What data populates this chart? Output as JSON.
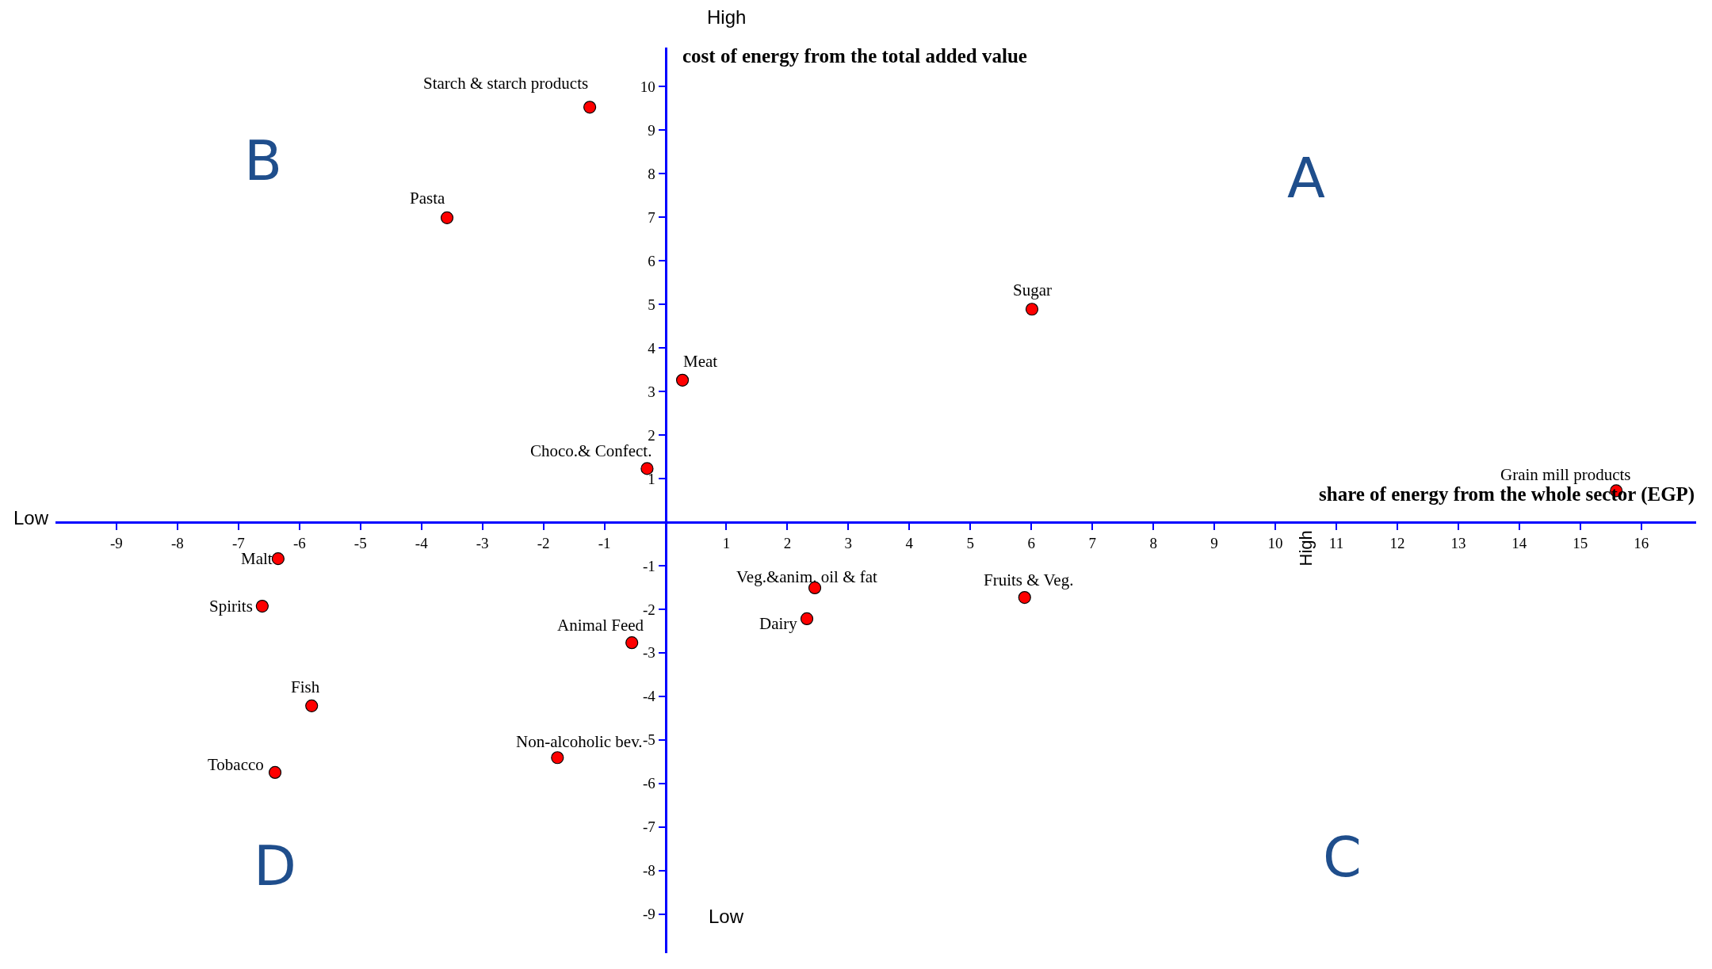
{
  "chart_data": {
    "type": "scatter",
    "xlabel": "share of energy from the whole sector (EGP)",
    "ylabel": "cost of energy from the total added value",
    "x": [
      -1.24,
      -3.58,
      6.01,
      0.28,
      -0.3,
      15.59,
      -6.35,
      -6.61,
      -5.8,
      -6.4,
      -0.55,
      -1.77,
      2.45,
      2.32,
      5.89
    ],
    "series": [
      {
        "color": "#ff0000",
        "values": [
          9.53,
          6.99,
          4.89,
          3.26,
          1.23,
          0.72,
          -0.84,
          -1.93,
          -4.22,
          -5.75,
          -2.77,
          -5.41,
          -1.51,
          -2.22,
          -1.73
        ]
      }
    ],
    "marker": "circle",
    "grid": false,
    "legend": false,
    "xlim": [
      -10,
      16.9
    ],
    "ylim": [
      -9.9,
      10.9
    ],
    "xticks": [
      -9,
      -8,
      -7,
      -6,
      -5,
      -4,
      -3,
      -2,
      -1,
      1,
      2,
      3,
      4,
      5,
      6,
      7,
      8,
      9,
      10,
      11,
      12,
      13,
      14,
      15,
      16
    ],
    "yticks": [
      -9,
      -8,
      -7,
      -6,
      -5,
      -4,
      -3,
      -2,
      -1,
      1,
      2,
      3,
      4,
      5,
      6,
      7,
      8,
      9,
      10
    ],
    "annotations": [
      "A",
      "B",
      "C",
      "D",
      "High",
      "Low",
      "High",
      "Low",
      {
        "text": "Starch & starch products",
        "x": -1.24,
        "y": 9.53
      },
      {
        "text": "Pasta",
        "x": -3.58,
        "y": 6.99
      },
      {
        "text": "Sugar",
        "x": 6.01,
        "y": 4.89
      },
      {
        "text": "Meat",
        "x": 0.28,
        "y": 3.26
      },
      {
        "text": "Choco.& Confect.",
        "x": -0.3,
        "y": 1.23
      },
      {
        "text": "Grain mill products",
        "x": 15.59,
        "y": 0.72
      },
      {
        "text": "Malt",
        "x": -6.35,
        "y": -0.84
      },
      {
        "text": "Spirits",
        "x": -6.61,
        "y": -1.93
      },
      {
        "text": "Fish",
        "x": -5.8,
        "y": -4.22
      },
      {
        "text": "Tobacco",
        "x": -6.4,
        "y": -5.75
      },
      {
        "text": "Animal Feed",
        "x": -0.55,
        "y": -2.77
      },
      {
        "text": "Non-alcoholic bev.",
        "x": -1.77,
        "y": -5.41
      },
      {
        "text": "Veg.&anim. oil & fat",
        "x": 2.45,
        "y": -1.51
      },
      {
        "text": "Dairy",
        "x": 2.32,
        "y": -2.22
      },
      {
        "text": "Fruits & Veg.",
        "x": 5.89,
        "y": -1.73
      }
    ]
  }
}
